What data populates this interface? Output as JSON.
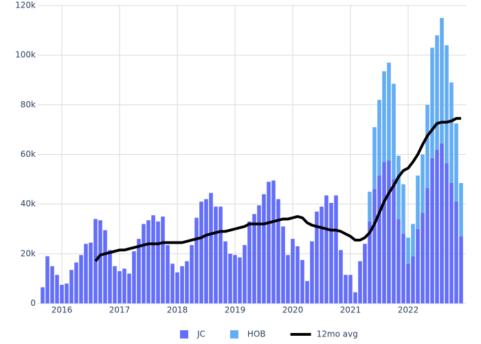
{
  "chart_data": {
    "type": "bar",
    "barmode": "stack",
    "grid": true,
    "legend": "bottom",
    "x": [
      "2015-09",
      "2015-10",
      "2015-11",
      "2015-12",
      "2016-01",
      "2016-02",
      "2016-03",
      "2016-04",
      "2016-05",
      "2016-06",
      "2016-07",
      "2016-08",
      "2016-09",
      "2016-10",
      "2016-11",
      "2016-12",
      "2017-01",
      "2017-02",
      "2017-03",
      "2017-04",
      "2017-05",
      "2017-06",
      "2017-07",
      "2017-08",
      "2017-09",
      "2017-10",
      "2017-11",
      "2017-12",
      "2018-01",
      "2018-02",
      "2018-03",
      "2018-04",
      "2018-05",
      "2018-06",
      "2018-07",
      "2018-08",
      "2018-09",
      "2018-10",
      "2018-11",
      "2018-12",
      "2019-01",
      "2019-02",
      "2019-03",
      "2019-04",
      "2019-05",
      "2019-06",
      "2019-07",
      "2019-08",
      "2019-09",
      "2019-10",
      "2019-11",
      "2019-12",
      "2020-01",
      "2020-02",
      "2020-03",
      "2020-04",
      "2020-05",
      "2020-06",
      "2020-07",
      "2020-08",
      "2020-09",
      "2020-10",
      "2020-11",
      "2020-12",
      "2021-01",
      "2021-02",
      "2021-03",
      "2021-04",
      "2021-05",
      "2021-06",
      "2021-07",
      "2021-08",
      "2021-09",
      "2021-10",
      "2021-11",
      "2021-12",
      "2022-01",
      "2022-02",
      "2022-03",
      "2022-04",
      "2022-05",
      "2022-06",
      "2022-07",
      "2022-08",
      "2022-09",
      "2022-10",
      "2022-11",
      "2022-12"
    ],
    "xlim": [
      "2015-08",
      "2023-01"
    ],
    "xticks": [
      "2016",
      "2017",
      "2018",
      "2019",
      "2020",
      "2021",
      "2022"
    ],
    "ylim": [
      0,
      120000
    ],
    "yticks": [
      0,
      {
        "value": 20000,
        "label": "20k"
      },
      {
        "value": 40000,
        "label": "40k"
      },
      {
        "value": 60000,
        "label": "60k"
      },
      {
        "value": 80000,
        "label": "80k"
      },
      {
        "value": 100000,
        "label": "100k"
      },
      {
        "value": 120000,
        "label": "120k"
      }
    ],
    "series": [
      {
        "name": "JC",
        "type": "bar",
        "color": "#636efa",
        "values": [
          6500,
          19000,
          15000,
          11500,
          7500,
          8000,
          13500,
          16500,
          19500,
          24000,
          24500,
          34000,
          33500,
          29500,
          21500,
          15000,
          13000,
          14000,
          12000,
          21000,
          26000,
          32000,
          33500,
          35500,
          33000,
          35000,
          23500,
          16000,
          12500,
          15000,
          17000,
          23500,
          34500,
          41000,
          42000,
          44500,
          39000,
          39000,
          25000,
          20000,
          19500,
          18500,
          23500,
          33000,
          36000,
          39500,
          44000,
          49000,
          49500,
          42000,
          31000,
          19500,
          26000,
          23000,
          17500,
          9000,
          25000,
          37000,
          39000,
          43500,
          40500,
          43500,
          21500,
          11500,
          11500,
          4500,
          17000,
          24000,
          33000,
          46000,
          51500,
          57000,
          57500,
          50000,
          34000,
          28000,
          16000,
          19000,
          30000,
          36500,
          46500,
          58500,
          62000,
          64500,
          56500,
          48500,
          41000,
          27000
        ]
      },
      {
        "name": "HOB",
        "type": "bar",
        "color": "#63adf5",
        "values": [
          0,
          0,
          0,
          0,
          0,
          0,
          0,
          0,
          0,
          0,
          0,
          0,
          0,
          0,
          0,
          0,
          0,
          0,
          0,
          0,
          0,
          0,
          0,
          0,
          0,
          0,
          0,
          0,
          0,
          0,
          0,
          0,
          0,
          0,
          0,
          0,
          0,
          0,
          0,
          0,
          0,
          0,
          0,
          0,
          0,
          0,
          0,
          0,
          0,
          0,
          0,
          0,
          0,
          0,
          0,
          0,
          0,
          0,
          0,
          0,
          0,
          0,
          0,
          0,
          0,
          0,
          0,
          0,
          12000,
          25000,
          30500,
          36500,
          39500,
          38500,
          25500,
          20000,
          10500,
          13000,
          21500,
          23500,
          33500,
          44500,
          46000,
          50500,
          47500,
          40500,
          31500,
          21500
        ]
      },
      {
        "name": "12mo avg",
        "type": "line",
        "color": "#000000",
        "values": [
          null,
          null,
          null,
          null,
          null,
          null,
          null,
          null,
          null,
          null,
          null,
          17000,
          19500,
          20000,
          20500,
          21000,
          21500,
          21500,
          22000,
          22500,
          23000,
          23500,
          24000,
          24000,
          24000,
          24500,
          24500,
          24500,
          24500,
          24500,
          25000,
          25500,
          26000,
          26500,
          27500,
          28000,
          28500,
          29000,
          29000,
          29500,
          30000,
          30500,
          31000,
          32000,
          32000,
          32000,
          32000,
          32500,
          33000,
          33500,
          34000,
          34000,
          34500,
          35000,
          34500,
          32500,
          31500,
          31000,
          30500,
          30000,
          29500,
          29500,
          29000,
          28000,
          27000,
          25500,
          25500,
          26500,
          28500,
          32000,
          36500,
          41000,
          44500,
          47500,
          51000,
          53500,
          54500,
          57000,
          60000,
          64000,
          67500,
          70000,
          72500,
          73000,
          73000,
          73500,
          74500,
          74500
        ]
      }
    ]
  }
}
